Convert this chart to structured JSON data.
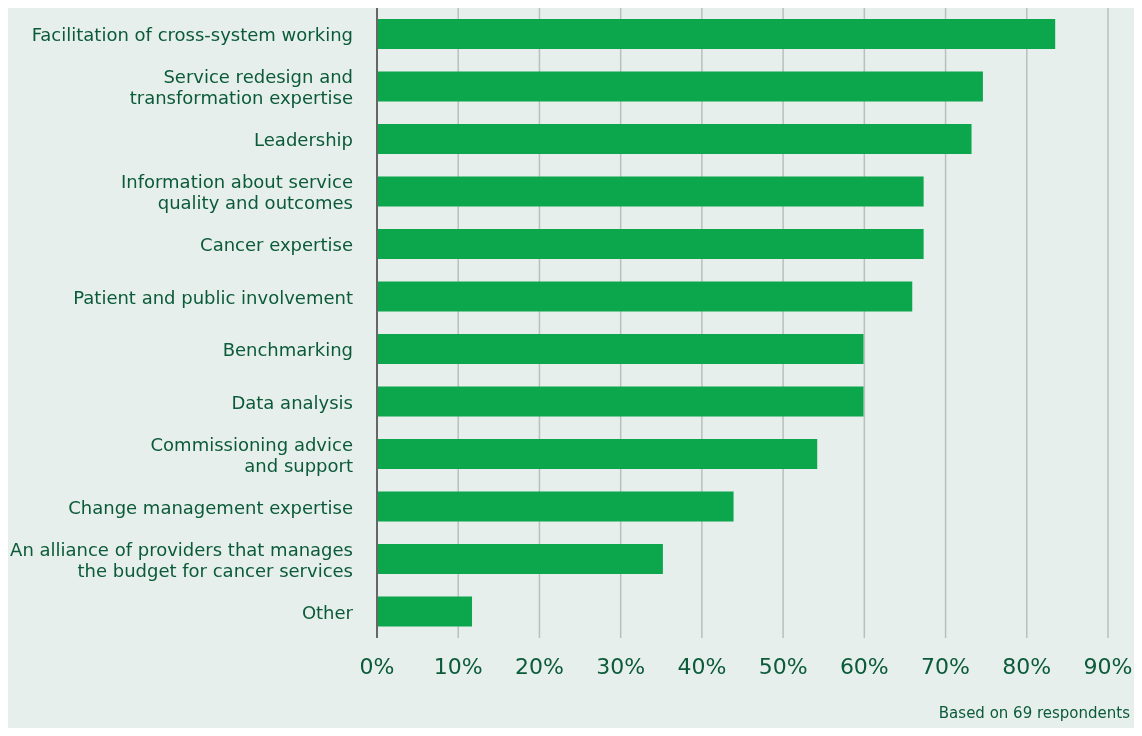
{
  "chart_data": {
    "type": "bar",
    "orientation": "horizontal",
    "categories": [
      "Facilitation of cross-system working",
      "Service redesign and\ntransformation expertise",
      "Leadership",
      "Information about service\nquality and outcomes",
      "Cancer expertise",
      "Patient and public involvement",
      "Benchmarking",
      "Data analysis",
      "Commissioning advice\nand support",
      "Change management expertise",
      "An alliance of providers that manages\nthe budget for cancer services",
      "Other"
    ],
    "values": [
      83.5,
      74.6,
      73.2,
      67.3,
      67.3,
      65.9,
      59.9,
      59.9,
      54.2,
      43.9,
      35.2,
      11.7
    ],
    "color": "#0ca64d",
    "xlim": [
      0,
      90
    ],
    "xticks": [
      {
        "value": 0,
        "label": "0%"
      },
      {
        "value": 10,
        "label": "10%"
      },
      {
        "value": 20,
        "label": "20%"
      },
      {
        "value": 30,
        "label": "30%"
      },
      {
        "value": 40,
        "label": "40%"
      },
      {
        "value": 50,
        "label": "50%"
      },
      {
        "value": 60,
        "label": "60%"
      },
      {
        "value": 70,
        "label": "70%"
      },
      {
        "value": 80,
        "label": "80%"
      },
      {
        "value": 90,
        "label": "90%"
      }
    ],
    "grid": "x",
    "annotations": [
      "Based on 69 respondents"
    ]
  }
}
